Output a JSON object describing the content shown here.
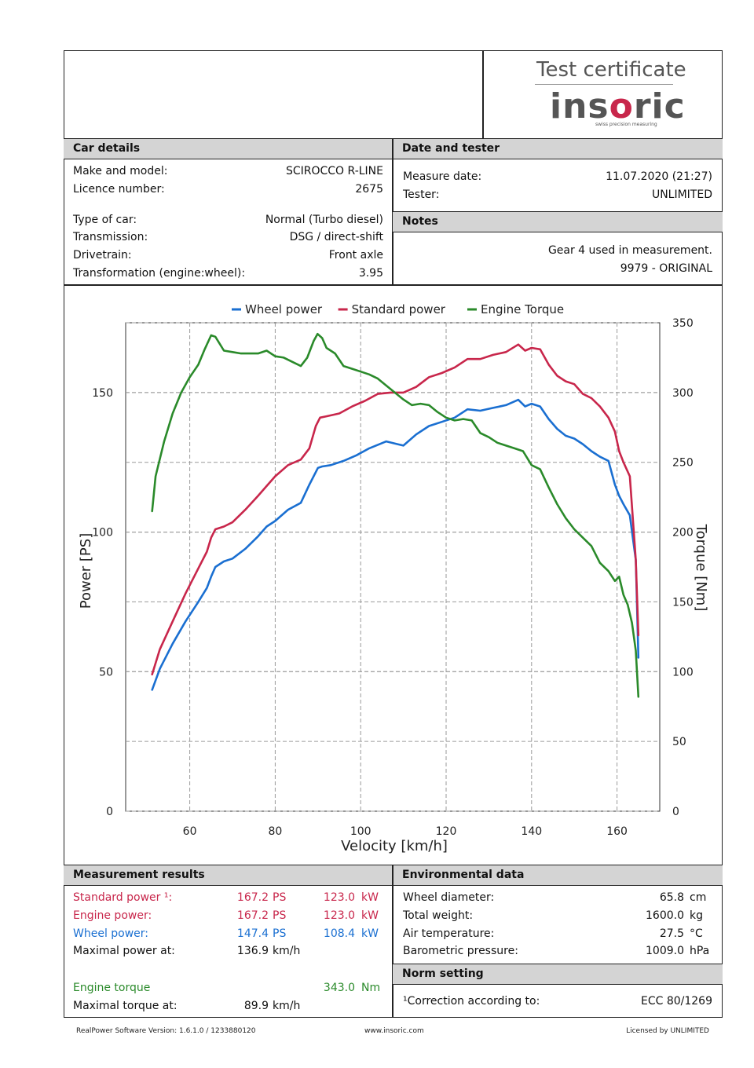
{
  "logo": {
    "title": "Test certificate",
    "brand": "insoric",
    "tagline": "swiss precision measuring"
  },
  "car_details": {
    "header": "Car details",
    "rows": [
      {
        "label": "Make and model:",
        "value": "SCIROCCO R-LINE"
      },
      {
        "label": "Licence number:",
        "value": "2675"
      },
      {
        "label": "Type of car:",
        "value": "Normal (Turbo diesel)"
      },
      {
        "label": "Transmission:",
        "value": "DSG / direct-shift"
      },
      {
        "label": "Drivetrain:",
        "value": "Front axle"
      },
      {
        "label": "Transformation (engine:wheel):",
        "value": "3.95"
      }
    ]
  },
  "date_tester": {
    "header": "Date and tester",
    "rows": [
      {
        "label": "Measure date:",
        "value": "11.07.2020 (21:27)"
      },
      {
        "label": "Tester:",
        "value": "UNLIMITED"
      }
    ]
  },
  "notes": {
    "header": "Notes",
    "lines": [
      "Gear 4 used in measurement.",
      "9979 - ORIGINAL"
    ]
  },
  "chart_data": {
    "type": "line",
    "title": "",
    "xlabel": "Velocity [km/h]",
    "ylabel": "Power [PS]",
    "y2label": "Torque [Nm]",
    "xlim": [
      45,
      170
    ],
    "ylim": [
      0,
      175
    ],
    "y2lim": [
      0,
      350
    ],
    "xticks": [
      60,
      80,
      100,
      120,
      140,
      160
    ],
    "yticks": [
      0,
      50,
      100,
      150
    ],
    "y2ticks": [
      0,
      50,
      100,
      150,
      200,
      250,
      300,
      350
    ],
    "grid": true,
    "legend_position": "top-center",
    "series": [
      {
        "name": "Wheel power",
        "axis": "left",
        "color": "#1a6fd1",
        "x": [
          51.2,
          53,
          56,
          59,
          62,
          64,
          65,
          66,
          68,
          70,
          73,
          76,
          78,
          80,
          83,
          86,
          88,
          90,
          91,
          93,
          96,
          99,
          102,
          106,
          110,
          113,
          116,
          119,
          122,
          125,
          128,
          131,
          134,
          136.9,
          138.5,
          140,
          142,
          144,
          146,
          148,
          150,
          152,
          154,
          156,
          158,
          159.5,
          160.5,
          161.5,
          163,
          164.4,
          165
        ],
        "y": [
          43.5,
          51,
          60,
          68,
          75,
          80,
          84,
          87.5,
          89.5,
          90.5,
          94,
          98.5,
          102,
          104,
          108,
          110.5,
          117,
          123,
          123.5,
          124,
          125.5,
          127.5,
          130,
          132.5,
          131,
          135,
          138,
          139.5,
          141,
          144,
          143.5,
          144.5,
          145.5,
          147.4,
          145,
          146,
          145,
          140.5,
          137,
          134.5,
          133.5,
          131.5,
          129,
          127,
          125.5,
          117,
          113,
          110,
          106,
          90,
          55
        ]
      },
      {
        "name": "Standard power",
        "axis": "left",
        "color": "#c8264b",
        "x": [
          51.2,
          53,
          56,
          59,
          62,
          64,
          65,
          66,
          68,
          70,
          73,
          76,
          78,
          80,
          83,
          86,
          88,
          89.5,
          90.5,
          92,
          95,
          98,
          101,
          104,
          107,
          110,
          113,
          116,
          119,
          122,
          125,
          128,
          131,
          134,
          136.9,
          138.5,
          140,
          142,
          144,
          146,
          148,
          150,
          152,
          154,
          156,
          158,
          159.5,
          160.5,
          161.5,
          163,
          164.4,
          165
        ],
        "y": [
          49,
          58,
          68,
          78,
          87,
          93,
          98,
          101,
          102,
          103.5,
          108,
          113,
          116.5,
          120,
          124,
          126,
          130,
          138,
          141,
          141.5,
          142.5,
          145,
          147,
          149.5,
          150,
          150,
          152,
          155.5,
          157,
          159,
          162,
          162,
          163.5,
          164.5,
          167.2,
          165,
          166,
          165.5,
          160,
          156,
          154,
          153,
          149.5,
          148,
          145,
          141,
          136,
          129,
          125,
          120,
          90,
          63
        ]
      },
      {
        "name": "Engine Torque",
        "axis": "right",
        "color": "#2a8a2a",
        "x": [
          51.2,
          52,
          54,
          56,
          58,
          60,
          62,
          63.5,
          65,
          66,
          68,
          70,
          72,
          74,
          76,
          78,
          80,
          82,
          84,
          86,
          87.5,
          89,
          89.9,
          91,
          92,
          94,
          96,
          98,
          100,
          102,
          104,
          106,
          108,
          110,
          112,
          114,
          116,
          118,
          120,
          122,
          124,
          126,
          128,
          130,
          132,
          134,
          136,
          138,
          140,
          142,
          144,
          146,
          148,
          150,
          152,
          154,
          156,
          158,
          159.5,
          160.5,
          161.5,
          162.5,
          163.5,
          164.4,
          165
        ],
        "y": [
          215,
          240,
          265,
          285,
          300,
          311,
          320,
          331,
          341,
          340,
          330,
          329,
          328,
          328,
          328,
          330,
          326,
          325,
          322,
          319,
          325,
          337,
          342,
          339,
          332,
          328,
          319,
          317,
          315,
          313,
          310,
          305,
          300,
          295,
          291,
          292,
          291,
          286,
          282,
          280,
          281,
          280,
          271,
          268,
          264,
          262,
          260,
          258,
          248,
          245,
          232,
          220,
          210,
          202,
          196,
          190,
          178,
          172,
          165,
          168,
          155,
          148,
          135,
          115,
          82
        ]
      }
    ]
  },
  "measurement_results": {
    "header": "Measurement results",
    "rows": [
      {
        "label": "Standard power ¹:",
        "v1": "167.2",
        "u1": "PS",
        "v2": "123.0",
        "u2": "kW"
      },
      {
        "label": "Engine power:",
        "v1": "167.2",
        "u1": "PS",
        "v2": "123.0",
        "u2": "kW"
      },
      {
        "label": "Wheel power:",
        "v1": "147.4",
        "u1": "PS",
        "v2": "108.4",
        "u2": "kW"
      },
      {
        "label": "Maximal power at:",
        "v1": "136.9",
        "u1": "km/h"
      }
    ],
    "torque": {
      "label": "Engine torque",
      "value": "343.0",
      "unit": "Nm"
    },
    "torque_at": {
      "label": "Maximal torque at:",
      "value": "89.9",
      "unit": "km/h"
    }
  },
  "environmental": {
    "header": "Environmental data",
    "rows": [
      {
        "label": "Wheel diameter:",
        "value": "65.8",
        "unit": "cm"
      },
      {
        "label": "Total weight:",
        "value": "1600.0",
        "unit": "kg"
      },
      {
        "label": "Air temperature:",
        "value": "27.5",
        "unit": "°C"
      },
      {
        "label": "Barometric pressure:",
        "value": "1009.0",
        "unit": "hPa"
      }
    ]
  },
  "norm": {
    "header": "Norm setting",
    "label": "¹Correction according to:",
    "value": "ECC 80/1269"
  },
  "footer": {
    "left": "RealPower Software Version: 1.6.1.0 / 1233880120",
    "center": "www.insoric.com",
    "right": "Licensed by UNLIMITED"
  }
}
